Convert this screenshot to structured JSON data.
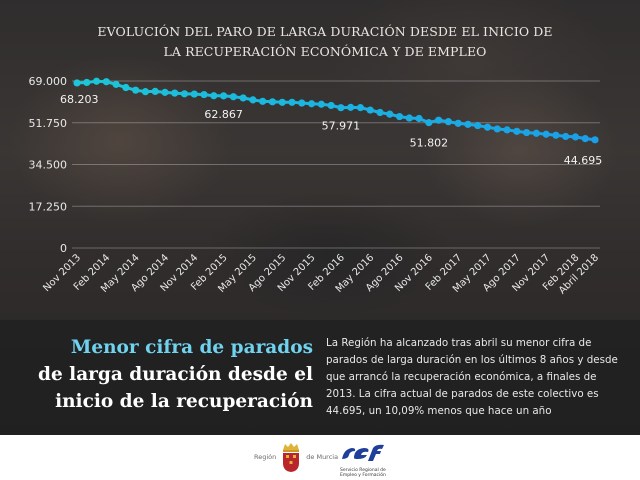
{
  "chart_data": {
    "type": "line",
    "title": "EVOLUCIÓN DEL PARO DE LARGA DURACIÓN DESDE EL INICIO DE LA RECUPERACIÓN ECONÓMICA Y DE EMPLEO",
    "title_lines": [
      "EVOLUCIÓN DEL PARO DE LARGA DURACIÓN DESDE EL INICIO DE",
      "LA RECUPERACIÓN ECONÓMICA Y DE EMPLEO"
    ],
    "xlabel": "",
    "ylabel": "",
    "ylim": [
      0,
      69000
    ],
    "y_ticks": [
      {
        "value": 69000,
        "label": "69.000"
      },
      {
        "value": 51750,
        "label": "51.750"
      },
      {
        "value": 34500,
        "label": "34.500"
      },
      {
        "value": 17250,
        "label": "17.250"
      },
      {
        "value": 0,
        "label": "0"
      }
    ],
    "grid": true,
    "legend": null,
    "x_tick_labels": [
      "Nov 2013",
      "Feb 2014",
      "May 2014",
      "Ago 2014",
      "Nov 2014",
      "Feb 2015",
      "May 2015",
      "Ago 2015",
      "Nov 2015",
      "Feb 2016",
      "May 2016",
      "Ago 2016",
      "Nov 2016",
      "Feb 2017",
      "May 2017",
      "Ago 2017",
      "Nov 2017",
      "Feb 2018",
      "Abril 2018"
    ],
    "x_tick_indices": [
      0,
      3,
      6,
      9,
      12,
      15,
      18,
      21,
      24,
      27,
      30,
      33,
      36,
      39,
      42,
      45,
      48,
      51,
      53
    ],
    "series": [
      {
        "name": "Parados de larga duración",
        "color": "#1cc6d8",
        "color_end": "#1a9fe8",
        "values": [
          68203,
          68400,
          68900,
          68700,
          67600,
          66300,
          65200,
          64600,
          64700,
          64300,
          64000,
          63700,
          63600,
          63400,
          62900,
          62867,
          62500,
          62000,
          61200,
          60600,
          60400,
          60200,
          60200,
          59900,
          59600,
          59400,
          58900,
          57971,
          58100,
          58000,
          57000,
          56000,
          55300,
          54300,
          53700,
          53500,
          51802,
          52800,
          52200,
          51500,
          51100,
          50600,
          49900,
          49200,
          48800,
          48200,
          47700,
          47400,
          47000,
          46600,
          46100,
          45900,
          45200,
          44695
        ]
      }
    ],
    "annotations": [
      {
        "index": 0,
        "label": "68.203"
      },
      {
        "index": 15,
        "label": "62.867"
      },
      {
        "index": 27,
        "label": "57.971"
      },
      {
        "index": 36,
        "label": "51.802"
      },
      {
        "index": 53,
        "label": "44.695"
      }
    ]
  },
  "headline": {
    "line1": "Menor cifra de parados",
    "line2": "de larga duración desde el",
    "line3": "inicio de la recuperación"
  },
  "body": {
    "text": "La Región ha alcanzado tras abril su menor cifra de parados de larga duración en los últimos 8 años y desde que arrancó la recuperación económica, a finales de 2013. La cifra actual de parados de este colectivo es 44.695, un 10,09% menos que hace un año"
  },
  "footer": {
    "murcia_left": "Región",
    "murcia_right": "de Murcia",
    "sef_logo_text": "sef",
    "sef_sub_line1": "Servicio Regional de",
    "sef_sub_line2": "Empleo y Formación"
  },
  "colors": {
    "line_start": "#1cc6d8",
    "line_end": "#1a9fe8",
    "headline_accent": "#6fd3ef",
    "sef_blue": "#1f3f9a",
    "murcia_red": "#b8262c",
    "murcia_gold": "#e0b23a"
  }
}
